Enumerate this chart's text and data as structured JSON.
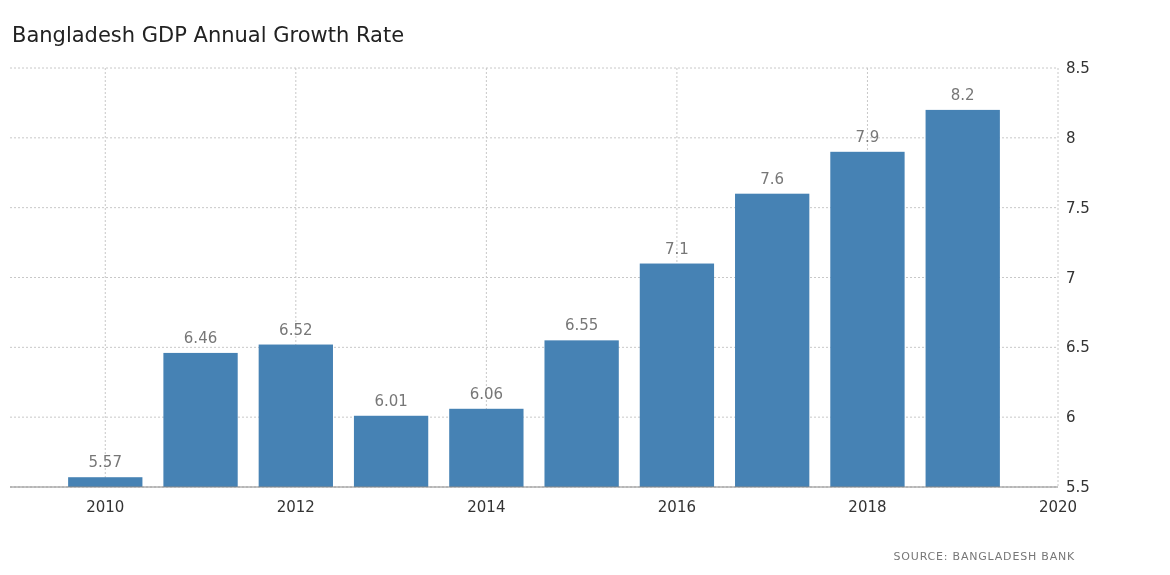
{
  "chart_data": {
    "type": "bar",
    "title": "Bangladesh GDP Annual Growth Rate",
    "x": [
      2010,
      2011,
      2012,
      2013,
      2014,
      2015,
      2016,
      2017,
      2018,
      2019
    ],
    "values": [
      5.57,
      6.46,
      6.52,
      6.01,
      6.06,
      6.55,
      7.1,
      7.6,
      7.9,
      8.2
    ],
    "color": "#4682b4",
    "xlim": [
      2009,
      2020
    ],
    "xticks": [
      2010,
      2012,
      2014,
      2016,
      2018,
      2020
    ],
    "ylim": [
      5.5,
      8.5
    ],
    "yticks": [
      5.5,
      6,
      6.5,
      7,
      7.5,
      8,
      8.5
    ],
    "grid": true,
    "data_labels": true,
    "annotations": [
      "SOURCE: BANGLADESH BANK"
    ]
  }
}
